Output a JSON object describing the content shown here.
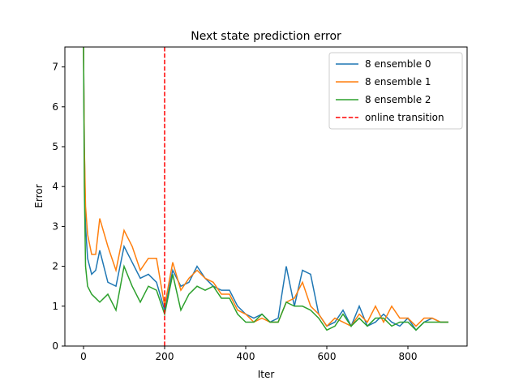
{
  "chart_data": {
    "type": "line",
    "title": "Next state prediction error",
    "xlabel": "Iter",
    "ylabel": "Error",
    "x": [
      0,
      2,
      5,
      10,
      20,
      30,
      40,
      60,
      80,
      100,
      120,
      140,
      160,
      180,
      200,
      220,
      240,
      260,
      280,
      300,
      320,
      340,
      360,
      380,
      400,
      420,
      440,
      460,
      480,
      500,
      520,
      540,
      560,
      580,
      600,
      620,
      640,
      660,
      680,
      700,
      720,
      740,
      760,
      780,
      800,
      820,
      840,
      860,
      880,
      900
    ],
    "series": [
      {
        "name": "8 ensemble 0",
        "color": "#1f77b4",
        "values": [
          7.5,
          5,
          3,
          2.2,
          1.8,
          1.9,
          2.4,
          1.6,
          1.5,
          2.5,
          2.1,
          1.7,
          1.8,
          1.6,
          0.9,
          1.9,
          1.5,
          1.6,
          2.0,
          1.7,
          1.5,
          1.4,
          1.4,
          1.0,
          0.8,
          0.7,
          0.8,
          0.6,
          0.7,
          2.0,
          1.0,
          1.9,
          1.8,
          0.8,
          0.5,
          0.6,
          0.9,
          0.5,
          1.0,
          0.5,
          0.6,
          0.8,
          0.6,
          0.5,
          0.7,
          0.4,
          0.6,
          0.7,
          0.6,
          0.6
        ]
      },
      {
        "name": "8 ensemble 1",
        "color": "#ff7f0e",
        "values": [
          7.5,
          5,
          3.5,
          2.8,
          2.3,
          2.3,
          3.2,
          2.5,
          1.9,
          2.9,
          2.5,
          1.9,
          2.2,
          2.2,
          1.0,
          2.1,
          1.4,
          1.7,
          1.9,
          1.7,
          1.6,
          1.3,
          1.3,
          0.9,
          0.8,
          0.6,
          0.7,
          0.6,
          0.6,
          1.1,
          1.2,
          1.6,
          1.0,
          0.8,
          0.5,
          0.7,
          0.6,
          0.5,
          0.8,
          0.6,
          1.0,
          0.6,
          1.0,
          0.7,
          0.7,
          0.5,
          0.7,
          0.7,
          0.6,
          0.6
        ]
      },
      {
        "name": "8 ensemble 2",
        "color": "#2ca02c",
        "values": [
          7.5,
          4,
          2,
          1.5,
          1.3,
          1.2,
          1.1,
          1.3,
          0.9,
          2.0,
          1.5,
          1.1,
          1.5,
          1.4,
          0.8,
          1.8,
          0.9,
          1.3,
          1.5,
          1.4,
          1.5,
          1.2,
          1.2,
          0.8,
          0.6,
          0.6,
          0.8,
          0.6,
          0.6,
          1.1,
          1.0,
          1.0,
          0.9,
          0.7,
          0.4,
          0.5,
          0.8,
          0.5,
          0.7,
          0.5,
          0.7,
          0.7,
          0.5,
          0.6,
          0.6,
          0.4,
          0.6,
          0.6,
          0.6,
          0.6
        ]
      }
    ],
    "vline": {
      "name": "online transition",
      "color": "#ff0000",
      "x": 200
    },
    "xlim": [
      -46,
      946
    ],
    "ylim": [
      0,
      7.5
    ],
    "xticks": [
      0,
      200,
      400,
      600,
      800
    ],
    "yticks": [
      0,
      1,
      2,
      3,
      4,
      5,
      6,
      7
    ],
    "legend": "upper right"
  }
}
